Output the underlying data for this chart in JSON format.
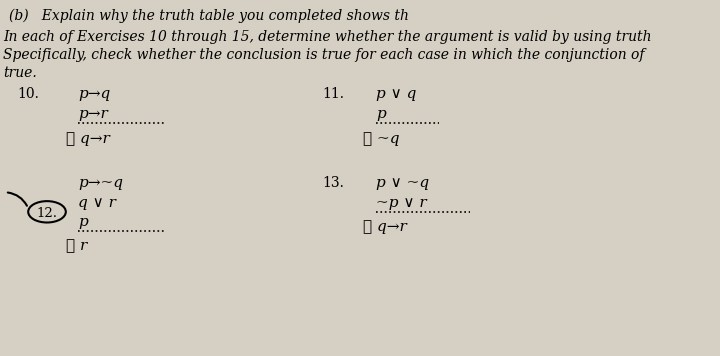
{
  "background_color": "#d6d0c4",
  "title_b": "(b)   Explain why the truth table you completed shows th",
  "intro_line1": "In each of Exercises 10 through 15, determine whether the argument is valid by using truth",
  "intro_line2": "Specifically, check whether the conclusion is true for each case in which the conjunction of",
  "intro_line3": "true.",
  "ex10_label": "10.",
  "ex10_line1": "p→q",
  "ex10_line2": "p→r",
  "ex10_conc": "∴ q→r",
  "ex11_label": "11.",
  "ex11_line1": "p ∨ q",
  "ex11_line2": "p",
  "ex11_conc": "∴ ~q",
  "ex12_label": "12.",
  "ex12_line1": "p→~q",
  "ex12_line2": "q ∨ r",
  "ex12_line3": "p",
  "ex12_conc": "∴ r",
  "ex13_label": "13.",
  "ex13_line1": "p ∨ ~q",
  "ex13_line2": "~p ∨ r",
  "ex13_conc": "∴ q→r",
  "font_size_title": 10,
  "font_size_body": 10,
  "font_size_math": 11,
  "font_size_label_small": 9.5
}
